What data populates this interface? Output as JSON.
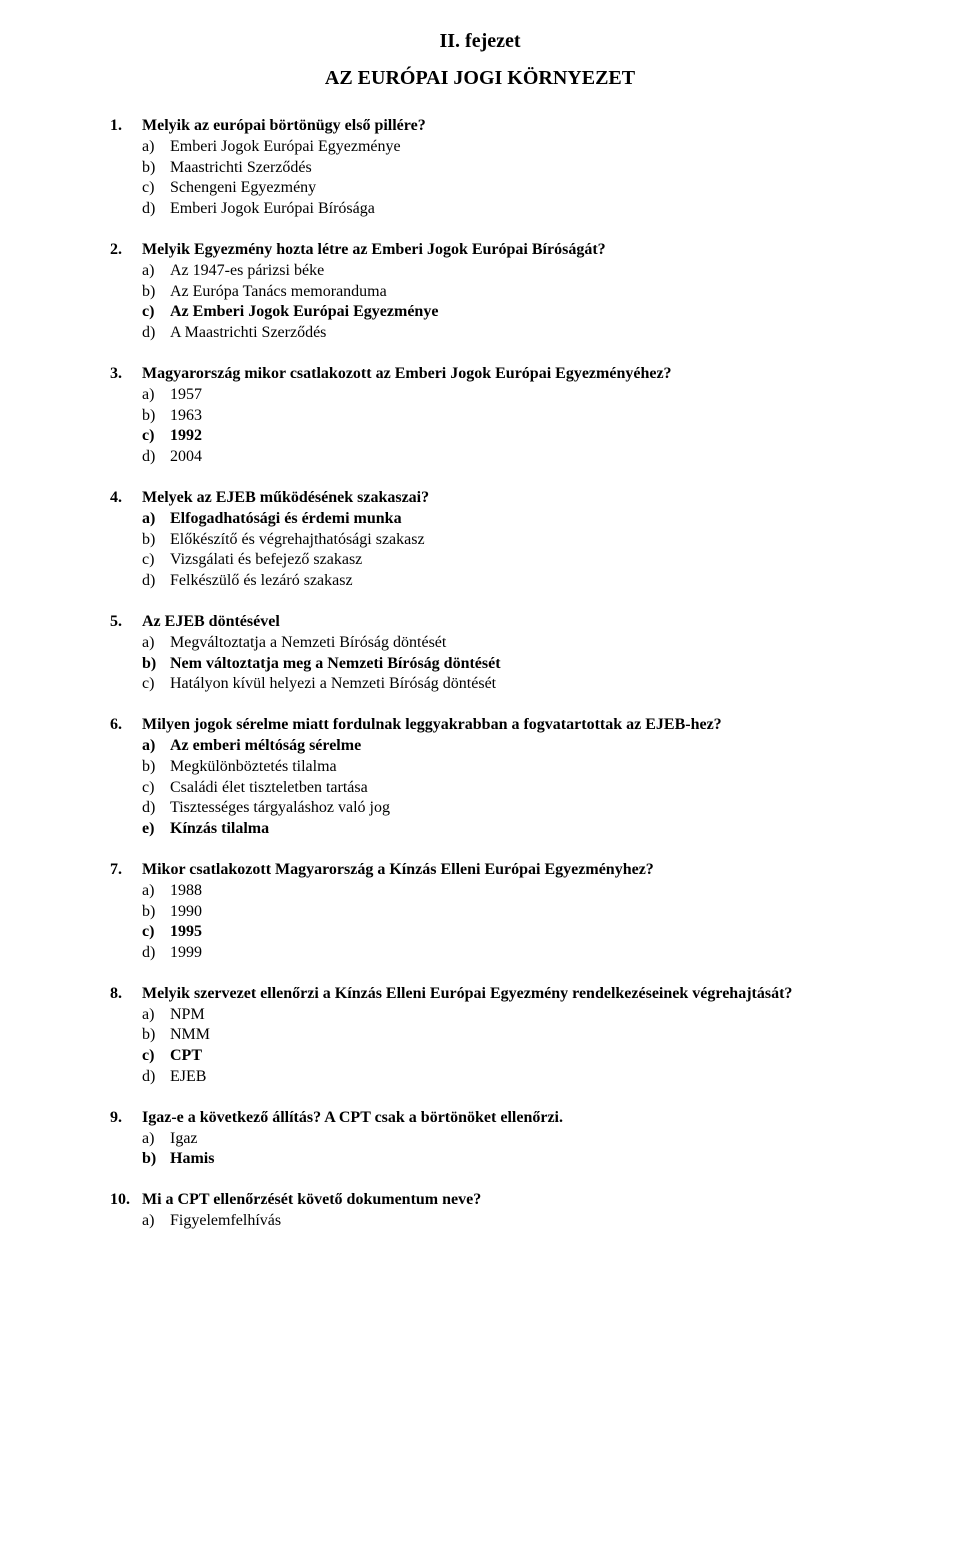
{
  "chapter": "II. fejezet",
  "title": "AZ EURÓPAI JOGI KÖRNYEZET",
  "questions": [
    {
      "num": "1.",
      "text": "Melyik az európai börtönügy első pillére?",
      "opts": [
        {
          "l": "a)",
          "t": "Emberi Jogok Európai Egyezménye",
          "b": false
        },
        {
          "l": "b)",
          "t": "Maastrichti Szerződés",
          "b": false
        },
        {
          "l": "c)",
          "t": "Schengeni Egyezmény",
          "b": false
        },
        {
          "l": "d)",
          "t": "Emberi Jogok Európai Bírósága",
          "b": false
        }
      ]
    },
    {
      "num": "2.",
      "text": "Melyik Egyezmény hozta létre az Emberi Jogok Európai Bíróságát?",
      "opts": [
        {
          "l": "a)",
          "t": "Az 1947-es párizsi béke",
          "b": false
        },
        {
          "l": "b)",
          "t": "Az Európa Tanács memoranduma",
          "b": false
        },
        {
          "l": "c)",
          "t": "Az Emberi Jogok Európai Egyezménye",
          "b": true
        },
        {
          "l": "d)",
          "t": "A Maastrichti Szerződés",
          "b": false
        }
      ]
    },
    {
      "num": "3.",
      "text": "Magyarország mikor csatlakozott az Emberi Jogok Európai Egyezményéhez?",
      "opts": [
        {
          "l": "a)",
          "t": "1957",
          "b": false
        },
        {
          "l": "b)",
          "t": "1963",
          "b": false
        },
        {
          "l": "c)",
          "t": "1992",
          "b": true
        },
        {
          "l": "d)",
          "t": "2004",
          "b": false
        }
      ]
    },
    {
      "num": "4.",
      "text": "Melyek az EJEB működésének szakaszai?",
      "opts": [
        {
          "l": "a)",
          "t": "Elfogadhatósági és érdemi munka",
          "b": true
        },
        {
          "l": "b)",
          "t": "Előkészítő és végrehajthatósági szakasz",
          "b": false
        },
        {
          "l": "c)",
          "t": "Vizsgálati és befejező szakasz",
          "b": false
        },
        {
          "l": "d)",
          "t": "Felkészülő és lezáró szakasz",
          "b": false
        }
      ]
    },
    {
      "num": "5.",
      "text": "Az EJEB döntésével",
      "opts": [
        {
          "l": "a)",
          "t": "Megváltoztatja a Nemzeti Bíróság döntését",
          "b": false
        },
        {
          "l": "b)",
          "t": "Nem változtatja meg a Nemzeti Bíróság döntését",
          "b": true
        },
        {
          "l": "c)",
          "t": "Hatályon kívül helyezi a Nemzeti Bíróság döntését",
          "b": false
        }
      ]
    },
    {
      "num": "6.",
      "text": "Milyen jogok sérelme miatt fordulnak leggyakrabban a fogvatartottak az EJEB-hez?",
      "opts": [
        {
          "l": "a)",
          "t": "Az emberi méltóság sérelme",
          "b": true
        },
        {
          "l": "b)",
          "t": "Megkülönböztetés tilalma",
          "b": false
        },
        {
          "l": "c)",
          "t": "Családi élet tiszteletben tartása",
          "b": false
        },
        {
          "l": "d)",
          "t": "Tisztességes tárgyaláshoz való jog",
          "b": false
        },
        {
          "l": "e)",
          "t": "Kínzás tilalma",
          "b": true
        }
      ]
    },
    {
      "num": "7.",
      "text": "Mikor csatlakozott Magyarország a Kínzás Elleni Európai Egyezményhez?",
      "opts": [
        {
          "l": "a)",
          "t": "1988",
          "b": false
        },
        {
          "l": "b)",
          "t": "1990",
          "b": false
        },
        {
          "l": "c)",
          "t": "1995",
          "b": true
        },
        {
          "l": "d)",
          "t": "1999",
          "b": false
        }
      ]
    },
    {
      "num": "8.",
      "text": "Melyik szervezet ellenőrzi a Kínzás Elleni Európai Egyezmény rendelkezéseinek végrehajtását?",
      "opts": [
        {
          "l": "a)",
          "t": "NPM",
          "b": false
        },
        {
          "l": "b)",
          "t": "NMM",
          "b": false
        },
        {
          "l": "c)",
          "t": "CPT",
          "b": true
        },
        {
          "l": "d)",
          "t": "EJEB",
          "b": false
        }
      ]
    },
    {
      "num": "9.",
      "text": "Igaz-e a következő állítás? A CPT csak a börtönöket ellenőrzi.",
      "opts": [
        {
          "l": "a)",
          "t": "Igaz",
          "b": false
        },
        {
          "l": "b)",
          "t": "Hamis",
          "b": true
        }
      ]
    },
    {
      "num": "10.",
      "text": "Mi a CPT ellenőrzését követő dokumentum neve?",
      "opts": [
        {
          "l": "a)",
          "t": "Figyelemfelhívás",
          "b": false
        }
      ]
    }
  ]
}
